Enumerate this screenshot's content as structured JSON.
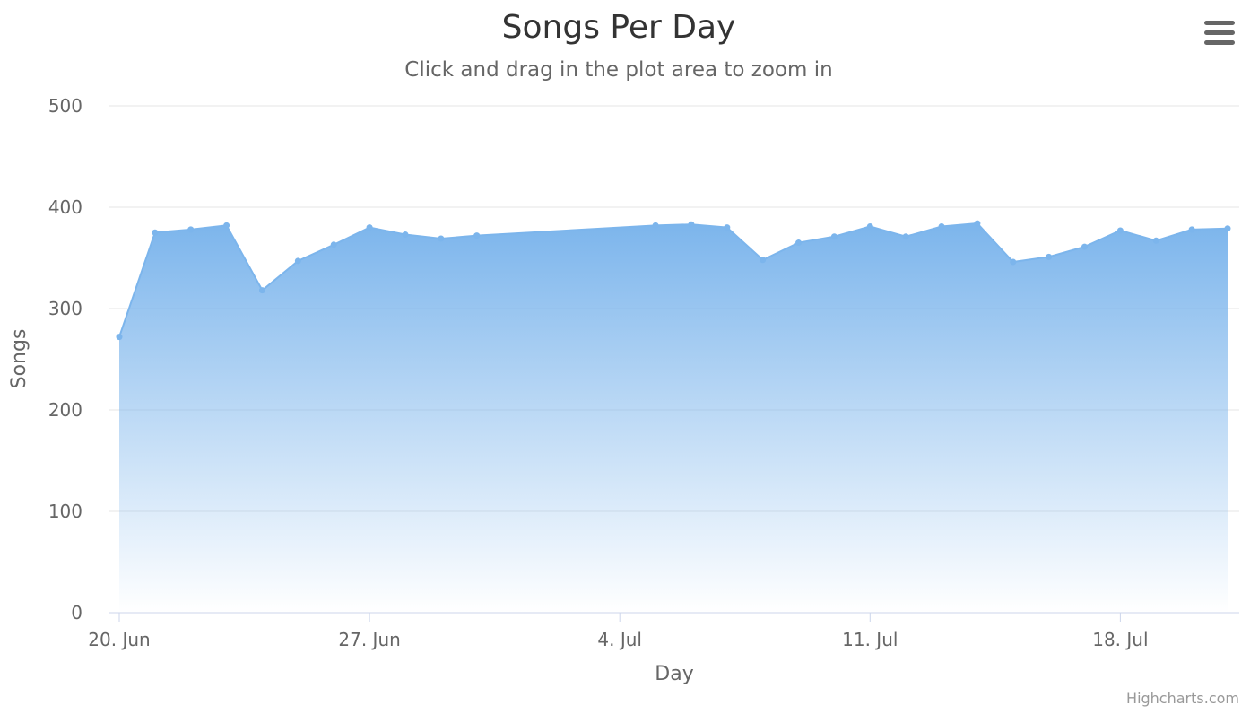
{
  "chart_data": {
    "type": "area",
    "title": "Songs Per Day",
    "subtitle": "Click and drag in the plot area to zoom in",
    "xlabel": "Day",
    "ylabel": "Songs",
    "ylim": [
      0,
      500
    ],
    "yticks": [
      0,
      100,
      200,
      300,
      400,
      500
    ],
    "xticks": [
      {
        "date": "2015-06-20",
        "label": "20. Jun"
      },
      {
        "date": "2015-06-27",
        "label": "27. Jun"
      },
      {
        "date": "2015-07-04",
        "label": "4. Jul"
      },
      {
        "date": "2015-07-11",
        "label": "11. Jul"
      },
      {
        "date": "2015-07-18",
        "label": "18. Jul"
      }
    ],
    "xlim": [
      "2015-06-20",
      "2015-07-21"
    ],
    "grid": true,
    "colors": {
      "line": "#7cb5ec",
      "fill": "#7cb5ec"
    },
    "series": [
      {
        "points": [
          {
            "x": "2015-06-20",
            "y": 272
          },
          {
            "x": "2015-06-21",
            "y": 375
          },
          {
            "x": "2015-06-22",
            "y": 378
          },
          {
            "x": "2015-06-23",
            "y": 382
          },
          {
            "x": "2015-06-24",
            "y": 318
          },
          {
            "x": "2015-06-25",
            "y": 347
          },
          {
            "x": "2015-06-26",
            "y": 363
          },
          {
            "x": "2015-06-27",
            "y": 380
          },
          {
            "x": "2015-06-28",
            "y": 373
          },
          {
            "x": "2015-06-29",
            "y": 369
          },
          {
            "x": "2015-06-30",
            "y": 372
          },
          {
            "x": "2015-07-05",
            "y": 382
          },
          {
            "x": "2015-07-06",
            "y": 383
          },
          {
            "x": "2015-07-07",
            "y": 380
          },
          {
            "x": "2015-07-08",
            "y": 348
          },
          {
            "x": "2015-07-09",
            "y": 365
          },
          {
            "x": "2015-07-10",
            "y": 371
          },
          {
            "x": "2015-07-11",
            "y": 381
          },
          {
            "x": "2015-07-12",
            "y": 371
          },
          {
            "x": "2015-07-13",
            "y": 381
          },
          {
            "x": "2015-07-14",
            "y": 384
          },
          {
            "x": "2015-07-15",
            "y": 346
          },
          {
            "x": "2015-07-16",
            "y": 351
          },
          {
            "x": "2015-07-17",
            "y": 361
          },
          {
            "x": "2015-07-18",
            "y": 377
          },
          {
            "x": "2015-07-19",
            "y": 367
          },
          {
            "x": "2015-07-20",
            "y": 378
          },
          {
            "x": "2015-07-21",
            "y": 379
          }
        ]
      }
    ]
  },
  "menu": {
    "icon": "hamburger-menu-icon"
  },
  "credits": {
    "text": "Highcharts.com"
  }
}
